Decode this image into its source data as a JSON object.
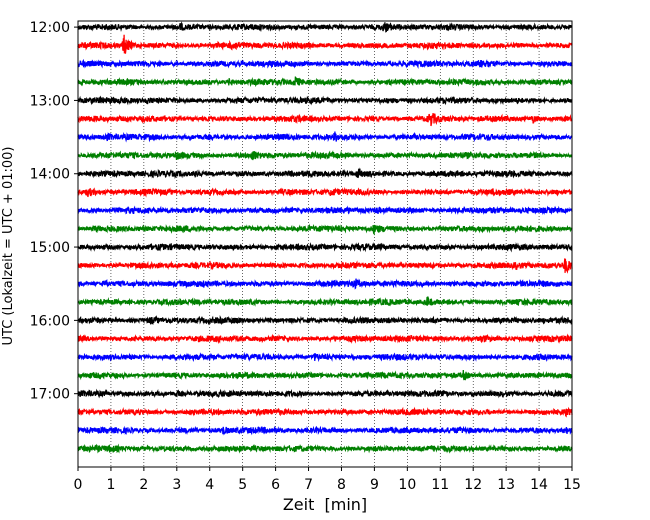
{
  "chart_data": {
    "type": "line",
    "title": "",
    "xlabel": "Zeit  [min]",
    "ylabel": "UTC (Lokalzeit = UTC + 01:00)",
    "xlim": [
      0,
      15
    ],
    "x_ticks": [
      "0",
      "1",
      "2",
      "3",
      "4",
      "5",
      "6",
      "7",
      "8",
      "9",
      "10",
      "11",
      "12",
      "13",
      "14",
      "15"
    ],
    "y_tick_labels": [
      "12:00",
      "13:00",
      "14:00",
      "15:00",
      "16:00",
      "17:00"
    ],
    "grid": "vertical dotted at each minute",
    "legend": "none",
    "trace_colors": [
      "#000000",
      "#ff0000",
      "#0000ff",
      "#008000"
    ],
    "traces": [
      {
        "start": "12:00",
        "color": "#000000",
        "events": [
          {
            "t": 9.3,
            "amp": 1.2
          },
          {
            "t": 3.1,
            "amp": 0.8
          }
        ]
      },
      {
        "start": "12:15",
        "color": "#ff0000",
        "events": [
          {
            "t": 1.4,
            "amp": 4.0
          },
          {
            "t": 4.7,
            "amp": 1.2
          }
        ]
      },
      {
        "start": "12:30",
        "color": "#0000ff",
        "events": [
          {
            "t": 12.2,
            "amp": 0.8
          }
        ]
      },
      {
        "start": "12:45",
        "color": "#008000",
        "events": [
          {
            "t": 6.6,
            "amp": 1.6
          },
          {
            "t": 4.6,
            "amp": 1.0
          }
        ]
      },
      {
        "start": "13:00",
        "color": "#000000",
        "events": [
          {
            "t": 2.1,
            "amp": 0.8
          }
        ]
      },
      {
        "start": "13:15",
        "color": "#ff0000",
        "events": [
          {
            "t": 10.7,
            "amp": 2.5
          },
          {
            "t": 13.8,
            "amp": 1.4
          }
        ]
      },
      {
        "start": "13:30",
        "color": "#0000ff",
        "events": [
          {
            "t": 7.8,
            "amp": 1.2
          },
          {
            "t": 0.9,
            "amp": 0.9
          }
        ]
      },
      {
        "start": "13:45",
        "color": "#008000",
        "events": [
          {
            "t": 5.3,
            "amp": 1.5
          },
          {
            "t": 3.0,
            "amp": 1.0
          }
        ]
      },
      {
        "start": "14:00",
        "color": "#000000",
        "events": [
          {
            "t": 3.6,
            "amp": 1.4
          },
          {
            "t": 8.5,
            "amp": 1.3
          }
        ]
      },
      {
        "start": "14:15",
        "color": "#ff0000",
        "events": [
          {
            "t": 0.3,
            "amp": 1.2
          },
          {
            "t": 7.7,
            "amp": 1.0
          }
        ]
      },
      {
        "start": "14:30",
        "color": "#0000ff",
        "events": [
          {
            "t": 9.1,
            "amp": 0.9
          }
        ]
      },
      {
        "start": "14:45",
        "color": "#008000",
        "events": [
          {
            "t": 9.0,
            "amp": 1.2
          },
          {
            "t": 0.5,
            "amp": 1.0
          }
        ]
      },
      {
        "start": "15:00",
        "color": "#000000",
        "events": [
          {
            "t": 6.0,
            "amp": 0.8
          }
        ]
      },
      {
        "start": "15:15",
        "color": "#ff0000",
        "events": [
          {
            "t": 14.8,
            "amp": 2.6
          },
          {
            "t": 13.3,
            "amp": 1.0
          }
        ]
      },
      {
        "start": "15:30",
        "color": "#0000ff",
        "events": [
          {
            "t": 8.4,
            "amp": 1.5
          },
          {
            "t": 0.8,
            "amp": 1.0
          }
        ]
      },
      {
        "start": "15:45",
        "color": "#008000",
        "events": [
          {
            "t": 10.6,
            "amp": 1.8
          }
        ]
      },
      {
        "start": "16:00",
        "color": "#000000",
        "events": [
          {
            "t": 2.2,
            "amp": 0.8
          }
        ]
      },
      {
        "start": "16:15",
        "color": "#ff0000",
        "events": [
          {
            "t": 12.3,
            "amp": 0.9
          }
        ]
      },
      {
        "start": "16:30",
        "color": "#0000ff",
        "events": [
          {
            "t": 7.2,
            "amp": 0.9
          }
        ]
      },
      {
        "start": "16:45",
        "color": "#008000",
        "events": [
          {
            "t": 11.7,
            "amp": 1.4
          }
        ]
      },
      {
        "start": "17:00",
        "color": "#000000",
        "events": [
          {
            "t": 3.0,
            "amp": 0.7
          }
        ]
      },
      {
        "start": "17:15",
        "color": "#ff0000",
        "events": [
          {
            "t": 14.8,
            "amp": 1.1
          }
        ]
      },
      {
        "start": "17:30",
        "color": "#0000ff",
        "events": [
          {
            "t": 4.4,
            "amp": 1.2
          },
          {
            "t": 14.8,
            "amp": 1.0
          }
        ]
      },
      {
        "start": "17:45",
        "color": "#008000",
        "events": [
          {
            "t": 1.0,
            "amp": 0.8
          }
        ]
      }
    ]
  }
}
